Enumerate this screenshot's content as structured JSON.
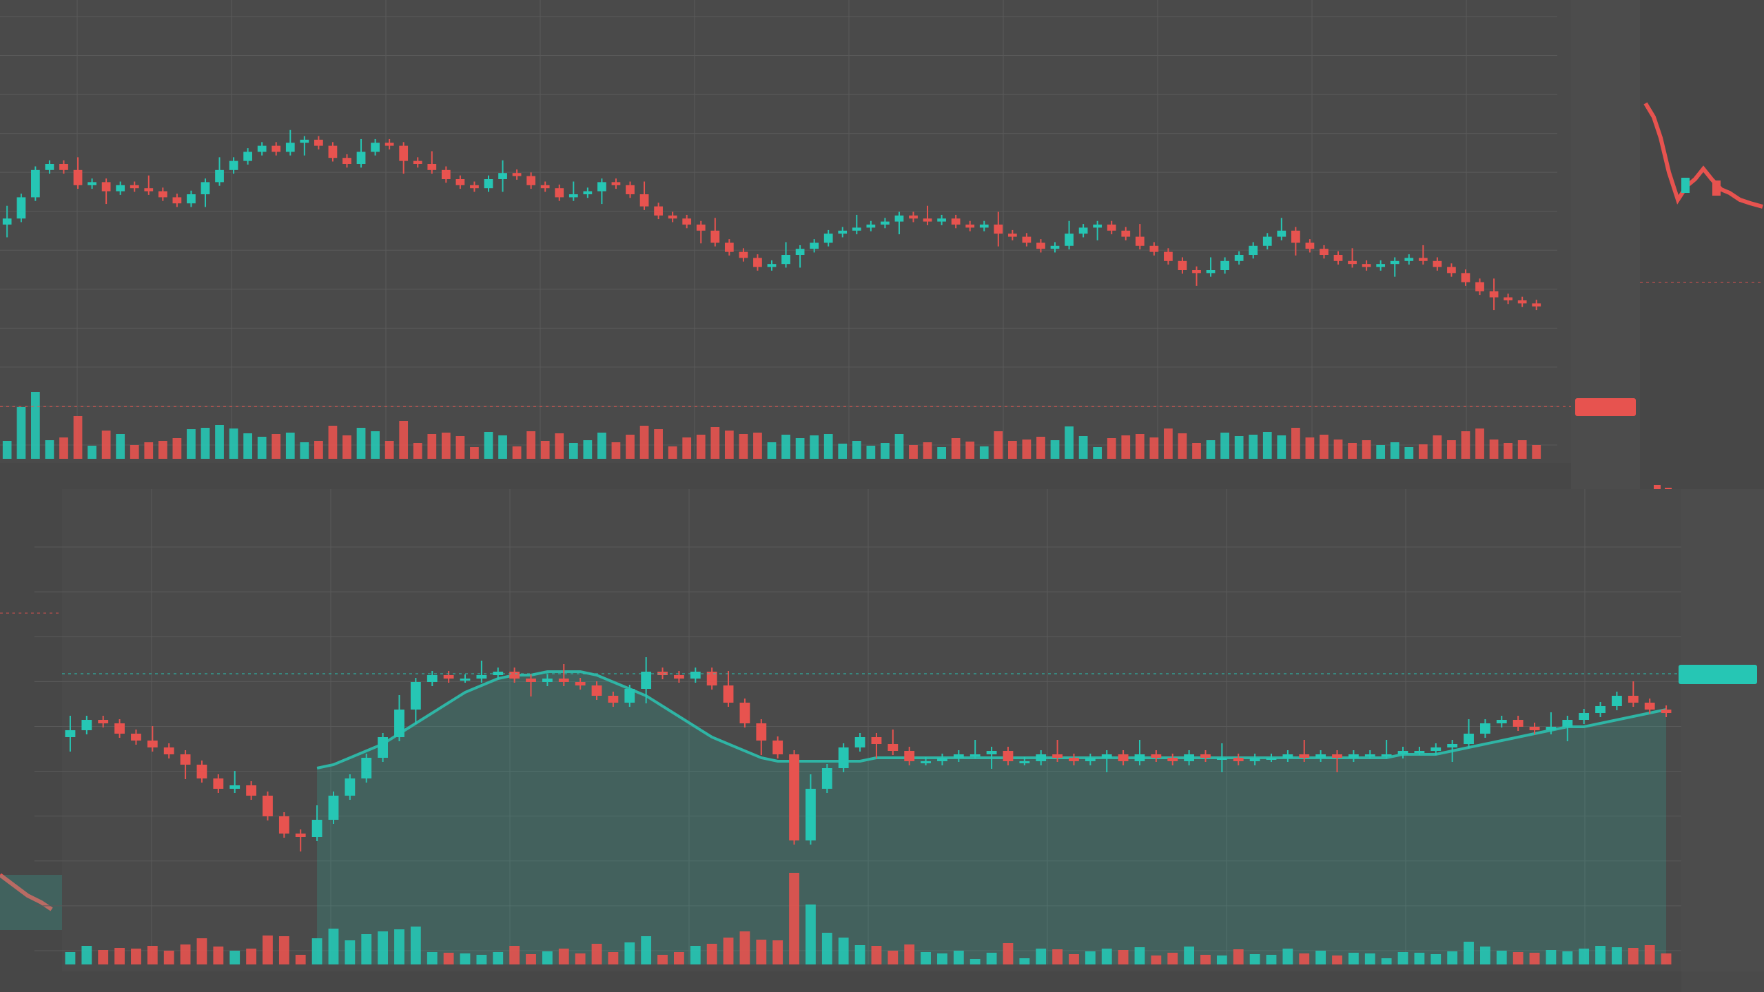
{
  "theme": {
    "up": "#26c6b4",
    "down": "#e7534f",
    "grid": "#5a5a5a",
    "bg": "#4a4a4a",
    "area": "#2fb5a5",
    "badge_down": "#e7534f",
    "badge_up": "#26c6b4"
  },
  "chart_data": [
    {
      "type": "candlestick",
      "title": "",
      "price_axis_labels": [
        "",
        "",
        "",
        "",
        "",
        "",
        "",
        "",
        "",
        "",
        "",
        ""
      ],
      "time_axis_labels": [
        "",
        "",
        "",
        "",
        "",
        "",
        "",
        "",
        "",
        ""
      ],
      "last_price_label": "",
      "ylim": [
        0,
        100
      ],
      "closes": [
        62,
        69,
        78,
        80,
        78,
        73,
        74,
        71,
        73,
        72,
        71,
        69,
        67,
        70,
        74,
        78,
        81,
        84,
        86,
        84,
        87,
        88,
        86,
        82,
        80,
        84,
        87,
        86,
        81,
        80,
        78,
        75,
        73,
        72,
        75,
        77,
        76,
        73,
        72,
        69,
        70,
        71,
        74,
        73,
        70,
        66,
        63,
        62,
        60,
        58,
        54,
        51,
        49,
        46,
        47,
        50,
        52,
        54,
        57,
        58,
        59,
        60,
        61,
        63,
        62,
        61,
        62,
        60,
        59,
        60,
        57,
        56,
        54,
        52,
        53,
        57,
        59,
        60,
        58,
        56,
        53,
        51,
        48,
        45,
        44,
        45,
        48,
        50,
        53,
        56,
        58,
        54,
        52,
        50,
        48,
        47,
        46,
        47,
        48,
        49,
        48,
        46,
        44,
        41,
        38,
        36,
        35,
        34,
        33
      ]
    },
    {
      "type": "candlestick",
      "title": "",
      "price_axis_labels": [
        "",
        "",
        "",
        "",
        "",
        "",
        "",
        "",
        "",
        ""
      ],
      "time_axis_labels": [
        "",
        "",
        "",
        "",
        "",
        "",
        "",
        "",
        ""
      ],
      "last_price_label": "",
      "ylim": [
        0,
        100
      ],
      "closes": [
        60,
        63,
        62,
        59,
        57,
        55,
        53,
        50,
        46,
        43,
        44,
        41,
        35,
        30,
        29,
        34,
        41,
        46,
        52,
        58,
        66,
        74,
        76,
        75,
        75,
        76,
        77,
        75,
        74,
        75,
        74,
        73,
        70,
        68,
        72,
        77,
        76,
        75,
        77,
        73,
        68,
        62,
        57,
        53,
        28,
        43,
        49,
        55,
        58,
        56,
        54,
        51,
        51,
        52,
        53,
        53,
        54,
        51,
        51,
        53,
        52,
        51,
        52,
        53,
        51,
        53,
        52,
        51,
        53,
        52,
        52,
        51,
        52,
        52,
        53,
        52,
        53,
        52,
        53,
        53,
        53,
        54,
        54,
        55,
        56,
        59,
        62,
        63,
        61,
        60,
        61,
        63,
        65,
        67,
        70,
        68,
        66,
        65
      ],
      "ma_line": [
        0,
        0,
        0,
        0,
        0,
        0,
        0,
        0,
        0,
        0,
        0,
        0,
        0,
        0,
        0,
        49,
        50,
        52,
        54,
        56,
        59,
        62,
        65,
        68,
        71,
        73,
        75,
        76,
        76,
        77,
        77,
        77,
        76,
        74,
        72,
        70,
        67,
        64,
        61,
        58,
        56,
        54,
        52,
        51,
        51,
        51,
        51,
        51,
        51,
        52,
        52,
        52,
        52,
        52,
        52,
        52,
        52,
        52,
        52,
        52,
        52,
        52,
        52,
        52,
        52,
        52,
        52,
        52,
        52,
        52,
        52,
        52,
        52,
        52,
        52,
        52,
        52,
        52,
        52,
        52,
        52,
        53,
        53,
        53,
        54,
        55,
        56,
        57,
        58,
        59,
        60,
        61,
        61,
        62,
        63,
        64,
        65,
        66
      ]
    }
  ],
  "icons": {
    "left_panel": "mini-chart-icon"
  }
}
